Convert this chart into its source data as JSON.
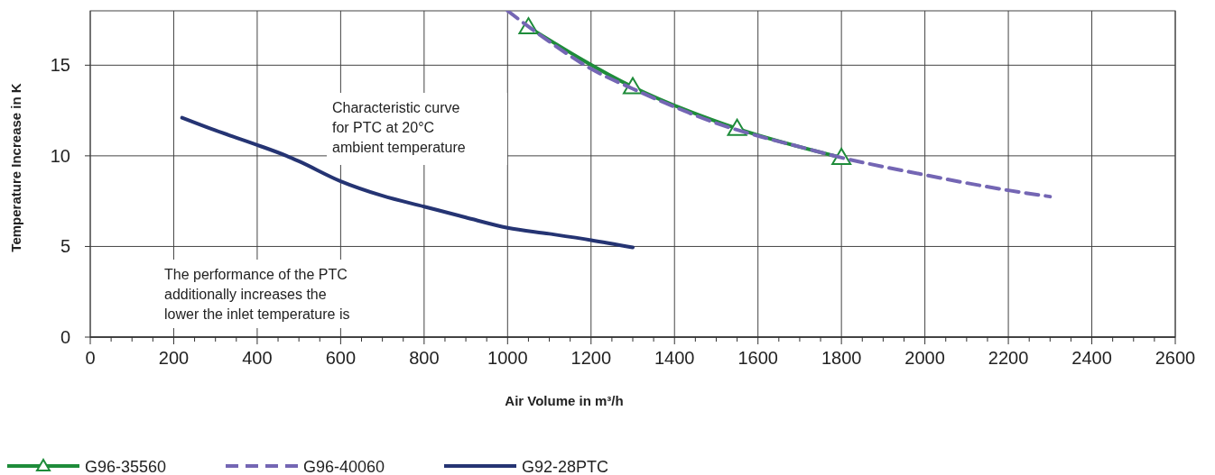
{
  "chart_data": {
    "type": "line",
    "xlabel": "Air Volume in m³/h",
    "ylabel": "Temperature Increase in K",
    "xlim": [
      0,
      2600
    ],
    "ylim": [
      0,
      18
    ],
    "xticks": [
      0,
      {
        "value": 50,
        "label": null
      },
      {
        "value": 100,
        "label": null
      },
      {
        "value": 150,
        "label": null
      },
      200,
      {
        "value": 250,
        "label": null
      },
      {
        "value": 300,
        "label": null
      },
      {
        "value": 350,
        "label": null
      },
      400,
      {
        "value": 450,
        "label": null
      },
      {
        "value": 500,
        "label": null
      },
      {
        "value": 550,
        "label": null
      },
      600,
      {
        "value": 650,
        "label": null
      },
      {
        "value": 700,
        "label": null
      },
      {
        "value": 750,
        "label": null
      },
      800,
      {
        "value": 850,
        "label": null
      },
      {
        "value": 900,
        "label": null
      },
      {
        "value": 950,
        "label": null
      },
      1000,
      {
        "value": 1050,
        "label": null
      },
      {
        "value": 1100,
        "label": null
      },
      {
        "value": 1150,
        "label": null
      },
      1200,
      {
        "value": 1250,
        "label": null
      },
      {
        "value": 1300,
        "label": null
      },
      {
        "value": 1350,
        "label": null
      },
      1400,
      {
        "value": 1450,
        "label": null
      },
      {
        "value": 1500,
        "label": null
      },
      {
        "value": 1550,
        "label": null
      },
      1600,
      {
        "value": 1650,
        "label": null
      },
      {
        "value": 1700,
        "label": null
      },
      {
        "value": 1750,
        "label": null
      },
      1800,
      {
        "value": 1850,
        "label": null
      },
      {
        "value": 1900,
        "label": null
      },
      {
        "value": 1950,
        "label": null
      },
      2000,
      {
        "value": 2050,
        "label": null
      },
      {
        "value": 2100,
        "label": null
      },
      {
        "value": 2150,
        "label": null
      },
      2200,
      {
        "value": 2250,
        "label": null
      },
      {
        "value": 2300,
        "label": null
      },
      {
        "value": 2350,
        "label": null
      },
      2400,
      {
        "value": 2450,
        "label": null
      },
      {
        "value": 2500,
        "label": null
      },
      {
        "value": 2550,
        "label": null
      },
      2600
    ],
    "yticks": [
      0,
      5,
      10,
      15
    ],
    "grid": true,
    "legend": "bottom left",
    "series": [
      {
        "name": "G96-35560",
        "color": "#1e8c3a",
        "marker": "triangle",
        "line_style": "solid",
        "x": [
          1050,
          1300,
          1550,
          1800
        ],
        "values": [
          17.1,
          13.8,
          11.5,
          9.9
        ]
      },
      {
        "name": "G96-40060",
        "color": "#7466b4",
        "marker": "none",
        "line_style": "dashed",
        "x": [
          1000,
          1100,
          1200,
          1300,
          1400,
          1500,
          1600,
          1700,
          1800,
          1900,
          2000,
          2100,
          2200,
          2300
        ],
        "values": [
          18,
          16.3,
          14.8,
          13.7,
          12.7,
          11.8,
          11.1,
          10.5,
          9.9,
          9.4,
          8.95,
          8.5,
          8.1,
          7.75
        ]
      },
      {
        "name": "G92-28PTC",
        "color": "#253473",
        "marker": "none",
        "line_style": "solid",
        "x": [
          220,
          300,
          400,
          470,
          500,
          600,
          700,
          800,
          900,
          1000,
          1100,
          1200,
          1300
        ],
        "values": [
          12.1,
          11.4,
          10.6,
          10,
          9.7,
          8.6,
          7.8,
          7.2,
          6.6,
          6.03,
          5.7,
          5.35,
          4.95
        ]
      }
    ],
    "annotations": [
      "Characteristic curve\nfor PTC at 20°C\nambient temperature",
      "The performance of the PTC\nadditionally increases the\nlower the inlet temperature is"
    ]
  }
}
